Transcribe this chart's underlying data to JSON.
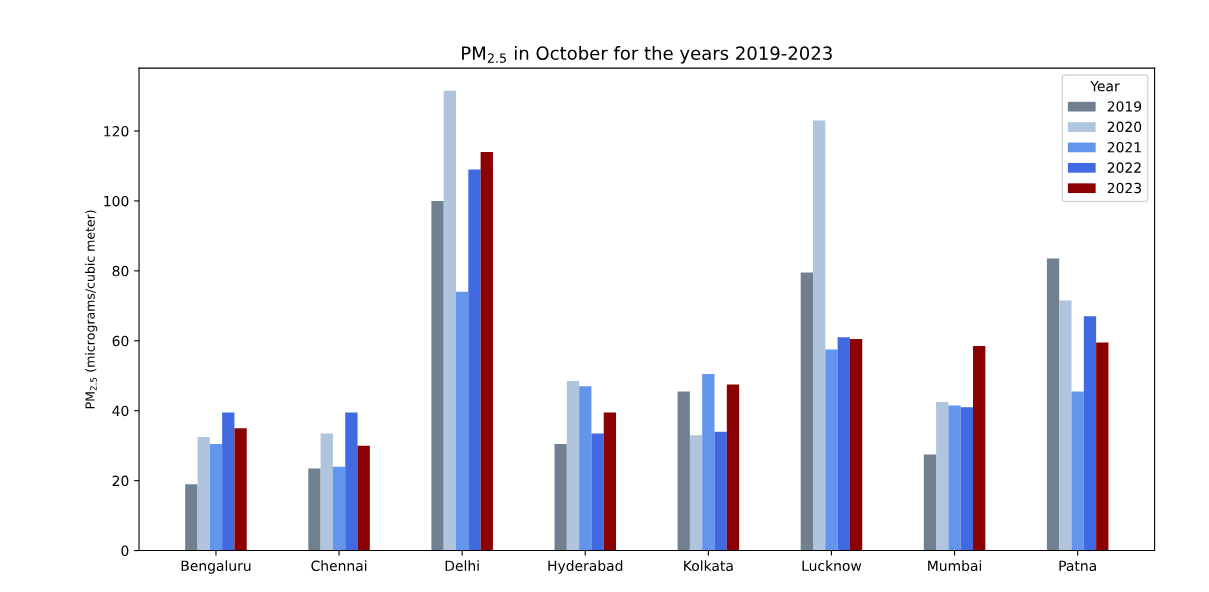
{
  "chart_data": {
    "type": "bar",
    "title": "PM$_{2.5}$ in October for the years 2019-2023",
    "ylabel": "PM$_{2.5}$ (micrograms/cubic meter)",
    "legend_title": "Year",
    "categories": [
      "Bengaluru",
      "Chennai",
      "Delhi",
      "Hyderabad",
      "Kolkata",
      "Lucknow",
      "Mumbai",
      "Patna"
    ],
    "series": [
      {
        "name": "2019",
        "color": "#708090",
        "values": [
          19,
          23.5,
          100,
          30.5,
          45.5,
          79.5,
          27.5,
          83.5
        ]
      },
      {
        "name": "2020",
        "color": "#b0c4de",
        "values": [
          32.5,
          33.5,
          131.5,
          48.5,
          33,
          123,
          42.5,
          71.5
        ]
      },
      {
        "name": "2021",
        "color": "#6495ed",
        "values": [
          30.5,
          24,
          74,
          47,
          50.5,
          57.5,
          41.5,
          45.5
        ]
      },
      {
        "name": "2022",
        "color": "#4169e1",
        "values": [
          39.5,
          39.5,
          109,
          33.5,
          34,
          61,
          41,
          67
        ]
      },
      {
        "name": "2023",
        "color": "#8b0000",
        "values": [
          35,
          30,
          114,
          39.5,
          47.5,
          60.5,
          58.5,
          59.5
        ]
      }
    ],
    "ylim": [
      0,
      138
    ],
    "yticks": [
      0,
      20,
      40,
      60,
      80,
      100,
      120
    ],
    "grid": false,
    "legend": "top right"
  }
}
